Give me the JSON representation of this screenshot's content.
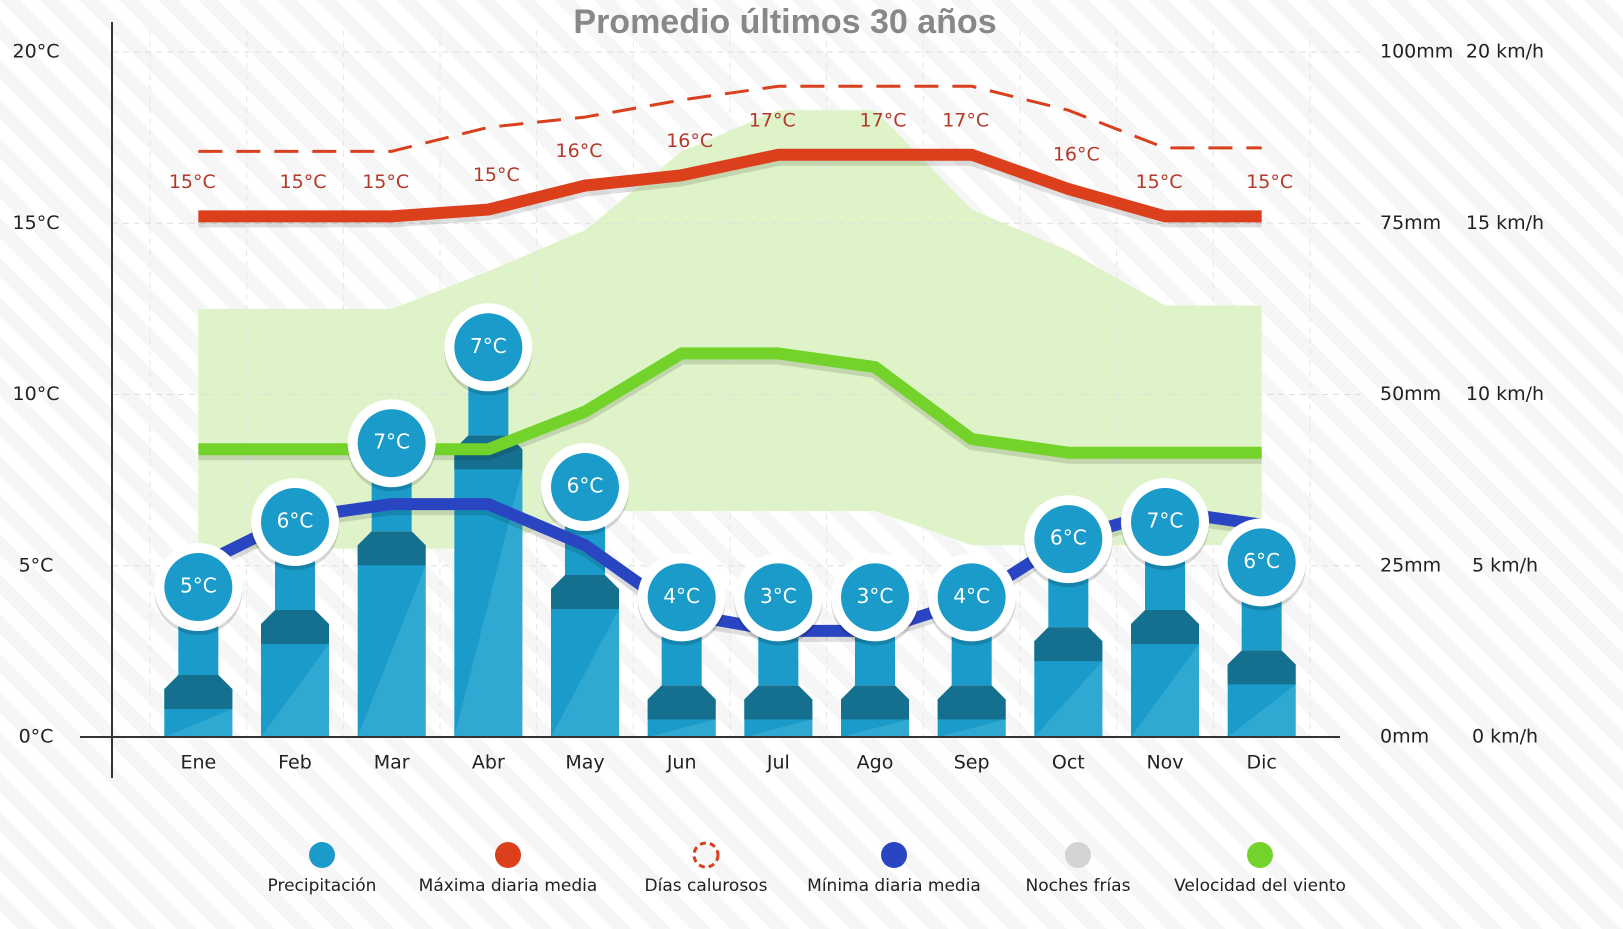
{
  "chart_data": {
    "type": "combo",
    "title": "Promedio últimos 30 años",
    "categories": [
      "Ene",
      "Feb",
      "Mar",
      "Abr",
      "May",
      "Jun",
      "Jul",
      "Ago",
      "Sep",
      "Oct",
      "Nov",
      "Dic"
    ],
    "ylim": [
      0,
      20
    ],
    "yticks": [
      {
        "value": 0,
        "label": "0°C"
      },
      {
        "value": 5,
        "label": "5°C"
      },
      {
        "value": 10,
        "label": "10°C"
      },
      {
        "value": 15,
        "label": "15°C"
      },
      {
        "value": 20,
        "label": "20°C"
      }
    ],
    "y2lim": [
      0,
      100
    ],
    "y2ticks": [
      {
        "value": 0,
        "label": "0mm"
      },
      {
        "value": 25,
        "label": "25mm"
      },
      {
        "value": 50,
        "label": "50mm"
      },
      {
        "value": 75,
        "label": "75mm"
      },
      {
        "value": 100,
        "label": "100mm"
      }
    ],
    "y3lim": [
      0,
      20
    ],
    "y3ticks": [
      {
        "value": 0,
        "label": "0 km/h"
      },
      {
        "value": 5,
        "label": "5 km/h"
      },
      {
        "value": 10,
        "label": "10 km/h"
      },
      {
        "value": 15,
        "label": "15 km/h"
      },
      {
        "value": 20,
        "label": "20 km/h"
      }
    ],
    "grid": true,
    "band": {
      "color": "#dff3c8",
      "upper": [
        12.5,
        12.5,
        12.5,
        13.6,
        14.8,
        17.1,
        18.3,
        18.3,
        15.4,
        14.2,
        12.6,
        12.6
      ],
      "lower": [
        5.5,
        5.5,
        5.5,
        5.5,
        6.6,
        6.6,
        6.6,
        6.6,
        5.6,
        5.6,
        5.6,
        5.6
      ]
    },
    "series": [
      {
        "name": "Precipitación",
        "type": "bar",
        "axis": "y2",
        "color": "#1a9bc9",
        "values": [
          7,
          16.5,
          28,
          42,
          21.6,
          5.5,
          5.5,
          5.5,
          5.5,
          14,
          16.5,
          10.6
        ]
      },
      {
        "name": "Máxima diaria media",
        "type": "line",
        "color": "#dc3f1c",
        "values": [
          15.2,
          15.2,
          15.2,
          15.4,
          16.1,
          16.4,
          17.0,
          17.0,
          17.0,
          16.0,
          15.2,
          15.2
        ],
        "value_labels": [
          "15°C",
          "15°C",
          "15°C",
          "15°C",
          "16°C",
          "16°C",
          "17°C",
          "17°C",
          "17°C",
          "16°C",
          "15°C",
          "15°C"
        ]
      },
      {
        "name": "Días calurosos",
        "type": "line",
        "dashed": true,
        "color": "#d9401e",
        "values": [
          17.1,
          17.1,
          17.1,
          17.8,
          18.1,
          18.6,
          19.0,
          19.0,
          19.0,
          18.3,
          17.2,
          17.2
        ]
      },
      {
        "name": "Mínima diaria media",
        "type": "line",
        "color": "#2a45c2",
        "values": [
          5.0,
          6.4,
          6.8,
          6.8,
          5.6,
          3.6,
          3.1,
          3.1,
          4.0,
          5.8,
          6.6,
          6.2
        ],
        "value_labels": [
          "5°C",
          "6°C",
          "7°C",
          "7°C",
          "6°C",
          "4°C",
          "3°C",
          "3°C",
          "4°C",
          "6°C",
          "7°C",
          "6°C"
        ]
      },
      {
        "name": "Noches frías",
        "type": "line",
        "color": "#d4d4d4",
        "values": [
          null,
          null,
          null,
          null,
          null,
          null,
          null,
          null,
          null,
          null,
          null,
          null
        ]
      },
      {
        "name": "Velocidad del viento",
        "type": "line",
        "axis": "y3",
        "color": "#74d32a",
        "values": [
          8.4,
          8.4,
          8.4,
          8.4,
          9.5,
          11.2,
          11.2,
          10.8,
          8.7,
          8.3,
          8.3,
          8.3
        ]
      }
    ]
  }
}
